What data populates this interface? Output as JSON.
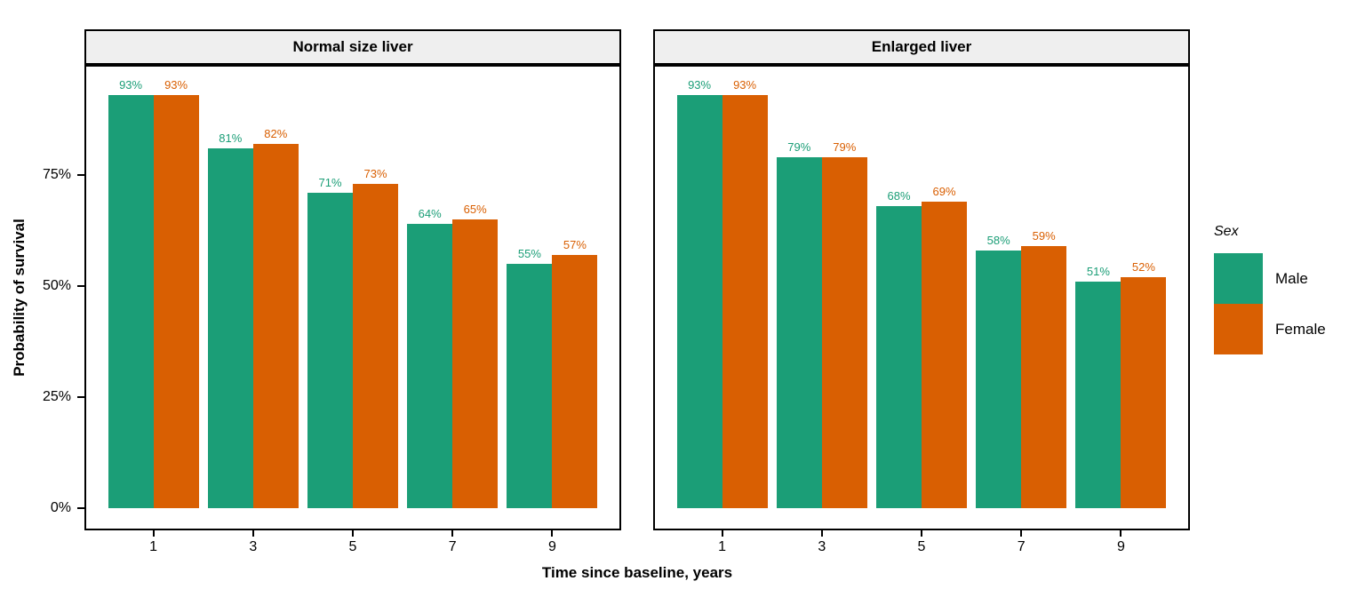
{
  "chart_data": {
    "type": "bar",
    "title": "",
    "xlabel": "Time since baseline, years",
    "ylabel": "Probability of survival",
    "categories": [
      "1",
      "3",
      "5",
      "7",
      "9"
    ],
    "ylim": [
      0,
      100
    ],
    "grid": false,
    "bar_value_suffix": "%",
    "y_ticks": [
      {
        "value": 0,
        "label": "0%"
      },
      {
        "value": 25,
        "label": "25%"
      },
      {
        "value": 50,
        "label": "50%"
      },
      {
        "value": 75,
        "label": "75%"
      }
    ],
    "facets": [
      {
        "label": "Normal size liver",
        "series": [
          {
            "name": "Male",
            "values": [
              93,
              81,
              71,
              64,
              55
            ]
          },
          {
            "name": "Female",
            "values": [
              93,
              82,
              73,
              65,
              57
            ]
          }
        ]
      },
      {
        "label": "Enlarged liver",
        "series": [
          {
            "name": "Male",
            "values": [
              93,
              79,
              68,
              58,
              51
            ]
          },
          {
            "name": "Female",
            "values": [
              93,
              79,
              69,
              59,
              52
            ]
          }
        ]
      }
    ],
    "legend": {
      "title": "Sex",
      "position": "right",
      "entries": [
        {
          "name": "Male",
          "color": "#1B9E77"
        },
        {
          "name": "Female",
          "color": "#D95F02"
        }
      ]
    },
    "colors": {
      "panel_border": "#000000",
      "strip_background": "#EFEFEF",
      "background": "#FFFFFF"
    }
  }
}
